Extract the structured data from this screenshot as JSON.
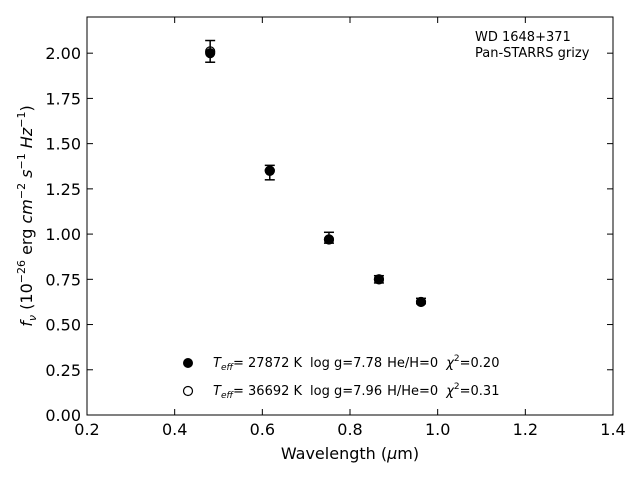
{
  "chart_data": {
    "type": "scatter",
    "title": "",
    "xlabel": "Wavelength (μm)",
    "ylabel": "f_ν (10^-26 erg cm^-2 s^-1 Hz^-1)",
    "xlim": [
      0.2,
      1.4
    ],
    "ylim": [
      0.0,
      2.2
    ],
    "x_ticks": [
      "0.2",
      "0.4",
      "0.6",
      "0.8",
      "1.0",
      "1.2",
      "1.4"
    ],
    "y_ticks": [
      "0.00",
      "0.25",
      "0.50",
      "0.75",
      "1.00",
      "1.25",
      "1.50",
      "1.75",
      "2.00"
    ],
    "grid": false,
    "annotation": [
      "WD 1648+371",
      "Pan-STARRS grizy"
    ],
    "observed": {
      "x": [
        0.481,
        0.617,
        0.752,
        0.866,
        0.962
      ],
      "y": [
        2.01,
        1.34,
        0.98,
        0.75,
        0.63
      ],
      "err": [
        0.06,
        0.04,
        0.03,
        0.02,
        0.015
      ]
    },
    "series": [
      {
        "name": "T_eff= 27872 K  log g=7.78  He/H=0  χ²=0.20",
        "marker": "filled-circle",
        "x": [
          0.481,
          0.617,
          0.752,
          0.866,
          0.962
        ],
        "y": [
          2.0,
          1.35,
          0.97,
          0.75,
          0.625
        ]
      },
      {
        "name": "T_eff= 36692 K  log g=7.96  H/He=0  χ²=0.31",
        "marker": "open-circle",
        "x": [
          0.481,
          0.617,
          0.752,
          0.866,
          0.962
        ],
        "y": [
          2.01,
          1.35,
          0.97,
          0.75,
          0.625
        ]
      }
    ],
    "legend_position": "bottom-center"
  },
  "legend_rows": [
    {
      "teff_label": "T",
      "teff_sub": "eff",
      "teff_value": "= 27872 K",
      "logg": "log g=7.78",
      "comp": "He/H=0",
      "chi_sym": "χ",
      "chi_exp": "2",
      "chi_value": "=0.20"
    },
    {
      "teff_label": "T",
      "teff_sub": "eff",
      "teff_value": "= 36692 K",
      "logg": "log g=7.96",
      "comp": "H/He=0",
      "chi_sym": "χ",
      "chi_exp": "2",
      "chi_value": "=0.31"
    }
  ],
  "xlabel_parts": {
    "pre": "Wavelength (",
    "mu": "μ",
    "post": "m)"
  },
  "ylabel_parts": {
    "f": "f",
    "nu": "ν",
    "open": " (10",
    "exp1": "−26",
    "erg": " erg ",
    "cm": "cm",
    "exp2": "−2",
    "s": " s",
    "exp3": "−1",
    "hz": " Hz",
    "exp4": "−1",
    "close": ")"
  }
}
